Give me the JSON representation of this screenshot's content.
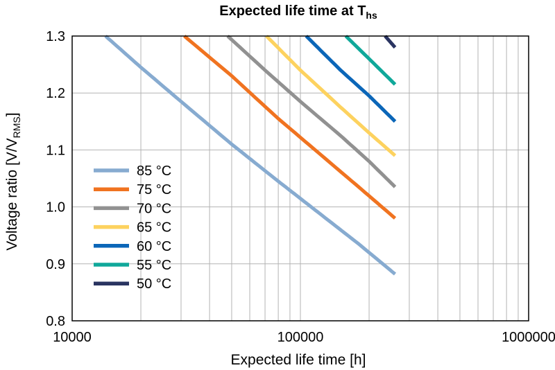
{
  "chart_data": {
    "type": "line",
    "title": "Expected life time at T",
    "title_subscript": "hs",
    "xlabel": "Expected life time [h]",
    "ylabel": "Voltage ratio [V/V",
    "ylabel_subscript": "RMS",
    "ylabel_suffix": "]",
    "x_scale": "log",
    "xlim": [
      10000,
      1000000
    ],
    "ylim": [
      0.8,
      1.3
    ],
    "x_ticks": [
      "10000",
      "100000",
      "1000000"
    ],
    "y_ticks": [
      "0.8",
      "0.9",
      "1.0",
      "1.1",
      "1.2",
      "1.3"
    ],
    "grid": true,
    "legend_position": "left-lower",
    "series": [
      {
        "name": "85 °C",
        "color": "#87abd0",
        "x": [
          14000,
          20000,
          30000,
          50000,
          80000,
          120000,
          180000,
          260000
        ],
        "y": [
          1.3,
          1.245,
          1.185,
          1.11,
          1.045,
          0.99,
          0.935,
          0.882
        ]
      },
      {
        "name": "75 °C",
        "color": "#f07320",
        "x": [
          31000,
          50000,
          80000,
          120000,
          180000,
          260000
        ],
        "y": [
          1.3,
          1.23,
          1.155,
          1.095,
          1.035,
          0.98
        ]
      },
      {
        "name": "70 °C",
        "color": "#919191",
        "x": [
          48000,
          70000,
          100000,
          150000,
          200000,
          260000
        ],
        "y": [
          1.3,
          1.24,
          1.185,
          1.125,
          1.08,
          1.035
        ]
      },
      {
        "name": "65 °C",
        "color": "#fdd25f",
        "x": [
          71000,
          100000,
          150000,
          200000,
          260000
        ],
        "y": [
          1.3,
          1.24,
          1.175,
          1.13,
          1.09
        ]
      },
      {
        "name": "60 °C",
        "color": "#0b66b8",
        "x": [
          106000,
          150000,
          200000,
          260000
        ],
        "y": [
          1.3,
          1.24,
          1.195,
          1.15
        ]
      },
      {
        "name": "55 °C",
        "color": "#10a89a",
        "x": [
          158000,
          200000,
          260000
        ],
        "y": [
          1.3,
          1.26,
          1.215
        ]
      },
      {
        "name": "50 °C",
        "color": "#2a3461",
        "x": [
          235000,
          260000
        ],
        "y": [
          1.3,
          1.28
        ]
      }
    ]
  }
}
